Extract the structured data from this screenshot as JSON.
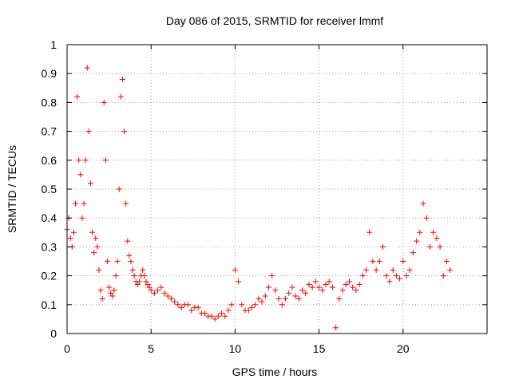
{
  "chart_data": {
    "type": "scatter",
    "title": "Day 086 of 2015, SRMTID for receiver lmmf",
    "xlabel": "GPS time / hours",
    "ylabel": "SRMTID / TECUs",
    "xlim": [
      0,
      25
    ],
    "ylim": [
      0,
      1
    ],
    "xticks": [
      0,
      5,
      10,
      15,
      20
    ],
    "yticks": [
      0,
      0.1,
      0.2,
      0.3,
      0.4,
      0.5,
      0.6,
      0.7,
      0.8,
      0.9,
      1
    ],
    "xtick_labels": [
      "0",
      "5",
      "10",
      "15",
      "20"
    ],
    "ytick_labels": [
      "0",
      "0.1",
      "0.2",
      "0.3",
      "0.4",
      "0.5",
      "0.6",
      "0.7",
      "0.8",
      "0.9",
      "1"
    ],
    "grid": true,
    "marker": "+",
    "color": "#ff0000",
    "series": [
      {
        "name": "SRMTID",
        "x": [
          0.0,
          0.1,
          0.2,
          0.3,
          0.4,
          0.5,
          0.6,
          0.7,
          0.8,
          0.9,
          1.0,
          1.1,
          1.2,
          1.3,
          1.4,
          1.5,
          1.6,
          1.7,
          1.8,
          1.9,
          2.0,
          2.1,
          2.2,
          2.3,
          2.4,
          2.5,
          2.6,
          2.7,
          2.8,
          2.9,
          3.0,
          3.1,
          3.2,
          3.3,
          3.4,
          3.5,
          3.6,
          3.7,
          3.8,
          3.9,
          4.0,
          4.1,
          4.2,
          4.3,
          4.4,
          4.5,
          4.6,
          4.7,
          4.8,
          4.9,
          5.0,
          5.2,
          5.4,
          5.6,
          5.8,
          6.0,
          6.2,
          6.4,
          6.6,
          6.8,
          7.0,
          7.2,
          7.4,
          7.6,
          7.8,
          8.0,
          8.2,
          8.4,
          8.6,
          8.8,
          9.0,
          9.2,
          9.4,
          9.6,
          9.8,
          10.0,
          10.2,
          10.4,
          10.6,
          10.8,
          11.0,
          11.2,
          11.4,
          11.6,
          11.8,
          12.0,
          12.2,
          12.4,
          12.6,
          12.8,
          13.0,
          13.2,
          13.4,
          13.6,
          13.8,
          14.0,
          14.2,
          14.4,
          14.6,
          14.8,
          15.0,
          15.2,
          15.4,
          15.6,
          15.8,
          16.0,
          16.2,
          16.4,
          16.6,
          16.8,
          17.0,
          17.2,
          17.4,
          17.6,
          17.8,
          18.0,
          18.2,
          18.4,
          18.6,
          18.8,
          19.0,
          19.2,
          19.4,
          19.6,
          19.8,
          20.0,
          20.2,
          20.4,
          20.6,
          20.8,
          21.0,
          21.2,
          21.4,
          21.6,
          21.8,
          22.0,
          22.2,
          22.4,
          22.6,
          22.8
        ],
        "y": [
          0.36,
          0.4,
          0.33,
          0.3,
          0.35,
          0.45,
          0.82,
          0.6,
          0.55,
          0.4,
          0.45,
          0.6,
          0.92,
          0.7,
          0.52,
          0.35,
          0.28,
          0.33,
          0.3,
          0.22,
          0.15,
          0.12,
          0.8,
          0.6,
          0.25,
          0.16,
          0.14,
          0.13,
          0.15,
          0.2,
          0.25,
          0.5,
          0.82,
          0.88,
          0.7,
          0.45,
          0.32,
          0.27,
          0.25,
          0.22,
          0.2,
          0.18,
          0.17,
          0.18,
          0.2,
          0.22,
          0.2,
          0.18,
          0.17,
          0.16,
          0.15,
          0.14,
          0.15,
          0.16,
          0.14,
          0.13,
          0.12,
          0.11,
          0.1,
          0.09,
          0.1,
          0.1,
          0.08,
          0.09,
          0.09,
          0.07,
          0.07,
          0.06,
          0.06,
          0.05,
          0.06,
          0.07,
          0.06,
          0.08,
          0.1,
          0.22,
          0.18,
          0.1,
          0.08,
          0.08,
          0.09,
          0.1,
          0.12,
          0.11,
          0.13,
          0.16,
          0.2,
          0.15,
          0.12,
          0.1,
          0.12,
          0.14,
          0.16,
          0.13,
          0.12,
          0.15,
          0.14,
          0.17,
          0.16,
          0.18,
          0.16,
          0.15,
          0.17,
          0.18,
          0.16,
          0.02,
          0.12,
          0.15,
          0.17,
          0.18,
          0.16,
          0.15,
          0.17,
          0.2,
          0.22,
          0.35,
          0.25,
          0.22,
          0.25,
          0.3,
          0.2,
          0.18,
          0.22,
          0.2,
          0.19,
          0.25,
          0.2,
          0.22,
          0.28,
          0.32,
          0.35,
          0.45,
          0.4,
          0.3,
          0.35,
          0.33,
          0.3,
          0.2,
          0.25,
          0.22
        ]
      }
    ]
  }
}
